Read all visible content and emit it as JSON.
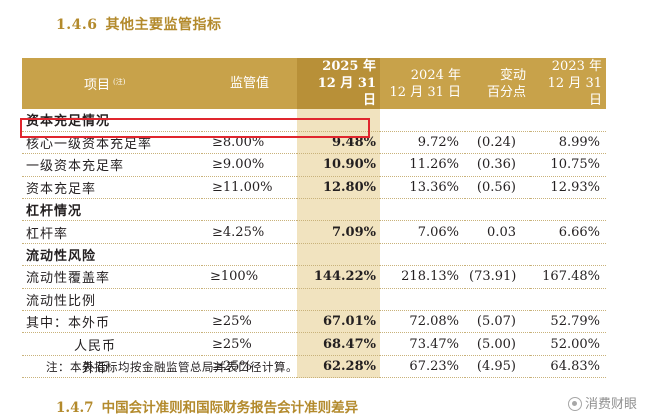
{
  "section": {
    "number": "1.4.6",
    "title": "其他主要监管指标"
  },
  "table": {
    "headers": {
      "item": "项目",
      "item_note": "(注)",
      "regulatory": "监管值",
      "y2025_line1": "2025 年",
      "y2025_line2": "12 月 31 日",
      "y2024_line1": "2024 年",
      "y2024_line2": "12 月 31 日",
      "change_line1": "变动",
      "change_line2": "百分点",
      "y2023_line1": "2023 年",
      "y2023_line2": "12 月 31 日"
    },
    "rows": [
      {
        "label": "资本充足情况",
        "group": true
      },
      {
        "label": "核心一级资本充足率",
        "req": "≥8.00%",
        "y2025": "9.48%",
        "y2024": "9.72%",
        "chg": "(0.24)",
        "y2023": "8.99%"
      },
      {
        "label": "一级资本充足率",
        "req": "≥9.00%",
        "y2025": "10.90%",
        "y2024": "11.26%",
        "chg": "(0.36)",
        "y2023": "10.75%"
      },
      {
        "label": "资本充足率",
        "req": "≥11.00%",
        "y2025": "12.80%",
        "y2024": "13.36%",
        "chg": "(0.56)",
        "y2023": "12.93%"
      },
      {
        "label": "杠杆情况",
        "group": true
      },
      {
        "label": "杠杆率",
        "req": "≥4.25%",
        "y2025": "7.09%",
        "y2024": "7.06%",
        "chg": "0.03",
        "y2023": "6.66%"
      },
      {
        "label": "流动性风险",
        "group": true
      },
      {
        "label": "流动性覆盖率",
        "req": "≥100%",
        "y2025": "144.22%",
        "y2024": "218.13%",
        "chg": "(73.91)",
        "y2023": "167.48%"
      },
      {
        "label": "流动性比例",
        "subgroup": true
      },
      {
        "label": "其中：本外币",
        "req": "≥25%",
        "y2025": "67.01%",
        "y2024": "72.08%",
        "chg": "(5.07)",
        "y2023": "52.79%"
      },
      {
        "label": "人民币",
        "indent": 1,
        "req": "≥25%",
        "y2025": "68.47%",
        "y2024": "73.47%",
        "chg": "(5.00)",
        "y2023": "52.00%"
      },
      {
        "label": "外币",
        "indent": 2,
        "req": "≥25%",
        "y2025": "62.28%",
        "y2024": "67.23%",
        "chg": "(4.95)",
        "y2023": "64.83%"
      }
    ]
  },
  "footnote": "注：本表指标均按金融监管总局并表口径计算。",
  "next_section": {
    "number": "1.4.7",
    "title": "中国会计准则和国际财务报告会计准则差异"
  },
  "watermark": "消费财眼",
  "colors": {
    "header_gold": "#c8a24a",
    "current_col_bg": "#f1e3bf",
    "highlight_red": "#e0262e",
    "title_gold": "#b38a2c"
  }
}
